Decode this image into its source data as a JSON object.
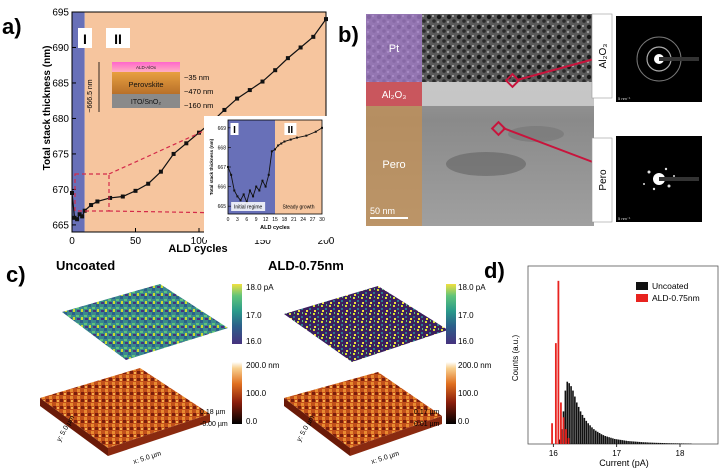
{
  "panels": {
    "a": "a)",
    "b": "b)",
    "c": "c)",
    "d": "d)"
  },
  "chart_data": [
    {
      "type": "line",
      "panel": "a",
      "xlabel": "ALD cycles",
      "ylabel": "Total stack thickness (nm)",
      "xlim": [
        0,
        200
      ],
      "ylim": [
        664,
        695
      ],
      "xticks": [
        "0",
        "50",
        "100",
        "150",
        "200"
      ],
      "yticks": [
        "665",
        "670",
        "675",
        "680",
        "685",
        "690",
        "695"
      ],
      "regions": [
        {
          "label": "I",
          "x": [
            0,
            10
          ],
          "color": "#6870b8"
        },
        {
          "label": "II",
          "x": [
            10,
            200
          ],
          "color": "#f6c59e"
        }
      ],
      "series": [
        {
          "x": [
            0,
            2,
            4,
            6,
            8,
            10,
            15,
            20,
            30,
            40,
            50,
            60,
            70,
            80,
            90,
            100,
            110,
            120,
            130,
            140,
            150,
            160,
            170,
            180,
            190,
            200
          ],
          "y": [
            669.5,
            666.0,
            665.8,
            666.5,
            666.2,
            667.0,
            667.8,
            668.3,
            668.8,
            669.0,
            669.8,
            670.8,
            672.5,
            675.0,
            676.5,
            678.0,
            679.5,
            681.2,
            682.8,
            684.0,
            685.2,
            686.8,
            688.5,
            690.0,
            691.5,
            694.0
          ]
        }
      ],
      "stack_labels": {
        "height": "~666.5 nm",
        "ald": "~35 nm",
        "pero": "~470 nm",
        "ito": "~160 nm",
        "ald_layer": "ALD-AlOx",
        "perovskite": "Perovskite",
        "substrate": "ITO/SnO₂"
      },
      "inset": {
        "xlabel": "ALD cycles",
        "ylabel": "Total stack thickness (nm)",
        "xticks": [
          "0",
          "3",
          "6",
          "9",
          "12",
          "15",
          "18",
          "21",
          "24",
          "27",
          "30"
        ],
        "yticks": [
          "665",
          "666",
          "667",
          "668",
          "669"
        ],
        "ylim": [
          664.6,
          669.4
        ],
        "regions": [
          {
            "label": "I",
            "note": "Initial regime",
            "x": [
              0,
              15
            ]
          },
          {
            "label": "II",
            "note": "Steady growth",
            "x": [
              15,
              30
            ]
          }
        ],
        "x": [
          0,
          1,
          2,
          3,
          4,
          5,
          6,
          7,
          8,
          9,
          10,
          11,
          12,
          13,
          14,
          15,
          16,
          17,
          18,
          20,
          22,
          25,
          28,
          30
        ],
        "y": [
          667.0,
          666.6,
          665.8,
          665.5,
          665.3,
          665.6,
          665.2,
          665.8,
          665.5,
          666.0,
          665.8,
          666.3,
          666.0,
          666.6,
          667.8,
          667.9,
          668.1,
          668.2,
          668.3,
          668.4,
          668.5,
          668.6,
          668.8,
          669.0
        ]
      }
    },
    {
      "type": "bar",
      "panel": "d",
      "xlabel": "Current (pA)",
      "ylabel": "Counts (a.u.)",
      "xlim": [
        15.6,
        18.6
      ],
      "xticks": [
        "16",
        "17",
        "18"
      ],
      "series": [
        {
          "name": "Uncoated",
          "color": "#111111",
          "x": [
            16.1,
            16.13,
            16.16,
            16.19,
            16.22,
            16.25,
            16.28,
            16.31,
            16.34,
            16.37,
            16.4,
            16.43,
            16.46,
            16.49,
            16.52,
            16.55,
            16.58,
            16.61,
            16.64,
            16.67,
            16.7,
            16.73,
            16.76,
            16.79,
            16.82,
            16.85,
            16.88,
            16.91,
            16.94,
            16.97,
            17.0,
            17.03,
            17.06,
            17.09,
            17.12,
            17.15,
            17.18,
            17.21,
            17.24,
            17.27,
            17.3,
            17.33,
            17.36,
            17.39,
            17.42,
            17.45,
            17.48,
            17.51,
            17.54,
            17.57,
            17.6,
            17.63,
            17.66,
            17.69,
            17.72,
            17.75,
            17.78,
            17.81,
            17.84,
            17.87,
            17.9,
            17.93,
            17.96,
            17.99,
            18.02,
            18.05,
            18.08,
            18.11,
            18.14,
            18.17
          ],
          "y": [
            0.15,
            0.5,
            1.1,
            1.8,
            2.1,
            2.05,
            1.95,
            1.8,
            1.6,
            1.4,
            1.25,
            1.1,
            0.98,
            0.88,
            0.78,
            0.7,
            0.63,
            0.56,
            0.5,
            0.45,
            0.41,
            0.37,
            0.33,
            0.3,
            0.27,
            0.25,
            0.23,
            0.21,
            0.19,
            0.17,
            0.16,
            0.15,
            0.14,
            0.13,
            0.12,
            0.11,
            0.1,
            0.095,
            0.09,
            0.085,
            0.08,
            0.075,
            0.07,
            0.065,
            0.06,
            0.058,
            0.055,
            0.05,
            0.048,
            0.045,
            0.042,
            0.04,
            0.038,
            0.036,
            0.034,
            0.032,
            0.03,
            0.028,
            0.026,
            0.025,
            0.024,
            0.023,
            0.022,
            0.021,
            0.02,
            0.019,
            0.018,
            0.017,
            0.016,
            0.015
          ]
        },
        {
          "name": "ALD-0.75nm",
          "color": "#e8231f",
          "x": [
            15.98,
            16.04,
            16.08,
            16.12,
            16.16,
            16.2,
            16.24
          ],
          "y": [
            0.7,
            3.4,
            5.5,
            1.4,
            0.9,
            0.5,
            0.2
          ]
        }
      ]
    }
  ],
  "panel_b": {
    "labels": {
      "pt": "Pt",
      "al2o3": "Al₂O₃",
      "pero": "Pero",
      "scale": "50 nm"
    },
    "side_labels": {
      "al2o3": "Al₂O₃",
      "pero": "Pero"
    },
    "diff_scale": "5 nm⁻¹",
    "colors": {
      "pt": "#a880d0",
      "al2o3": "#c9424a",
      "pero": "#c89050",
      "accent": "#c8143c"
    }
  },
  "panel_c": {
    "uncoated": {
      "title": "Uncoated",
      "current_ticks": [
        "18.0 pA",
        "17.0",
        "16.0"
      ],
      "height_ticks": [
        "200.0 nm",
        "100.0",
        "0.0"
      ],
      "z_ticks": [
        "0.18 µm",
        "-0.00 µm"
      ],
      "y_axis": "y: 5.0 µm",
      "x_axis": "x: 5.0 µm"
    },
    "ald": {
      "title": "ALD-0.75nm",
      "current_ticks": [
        "18.0 pA",
        "17.0",
        "16.0"
      ],
      "height_ticks": [
        "200.0 nm",
        "100.0",
        "0.0"
      ],
      "z_ticks": [
        "0.17 µm",
        "0.01 µm"
      ],
      "y_axis": "y: 5.0 µm",
      "x_axis": "x: 5.0 µm"
    }
  }
}
